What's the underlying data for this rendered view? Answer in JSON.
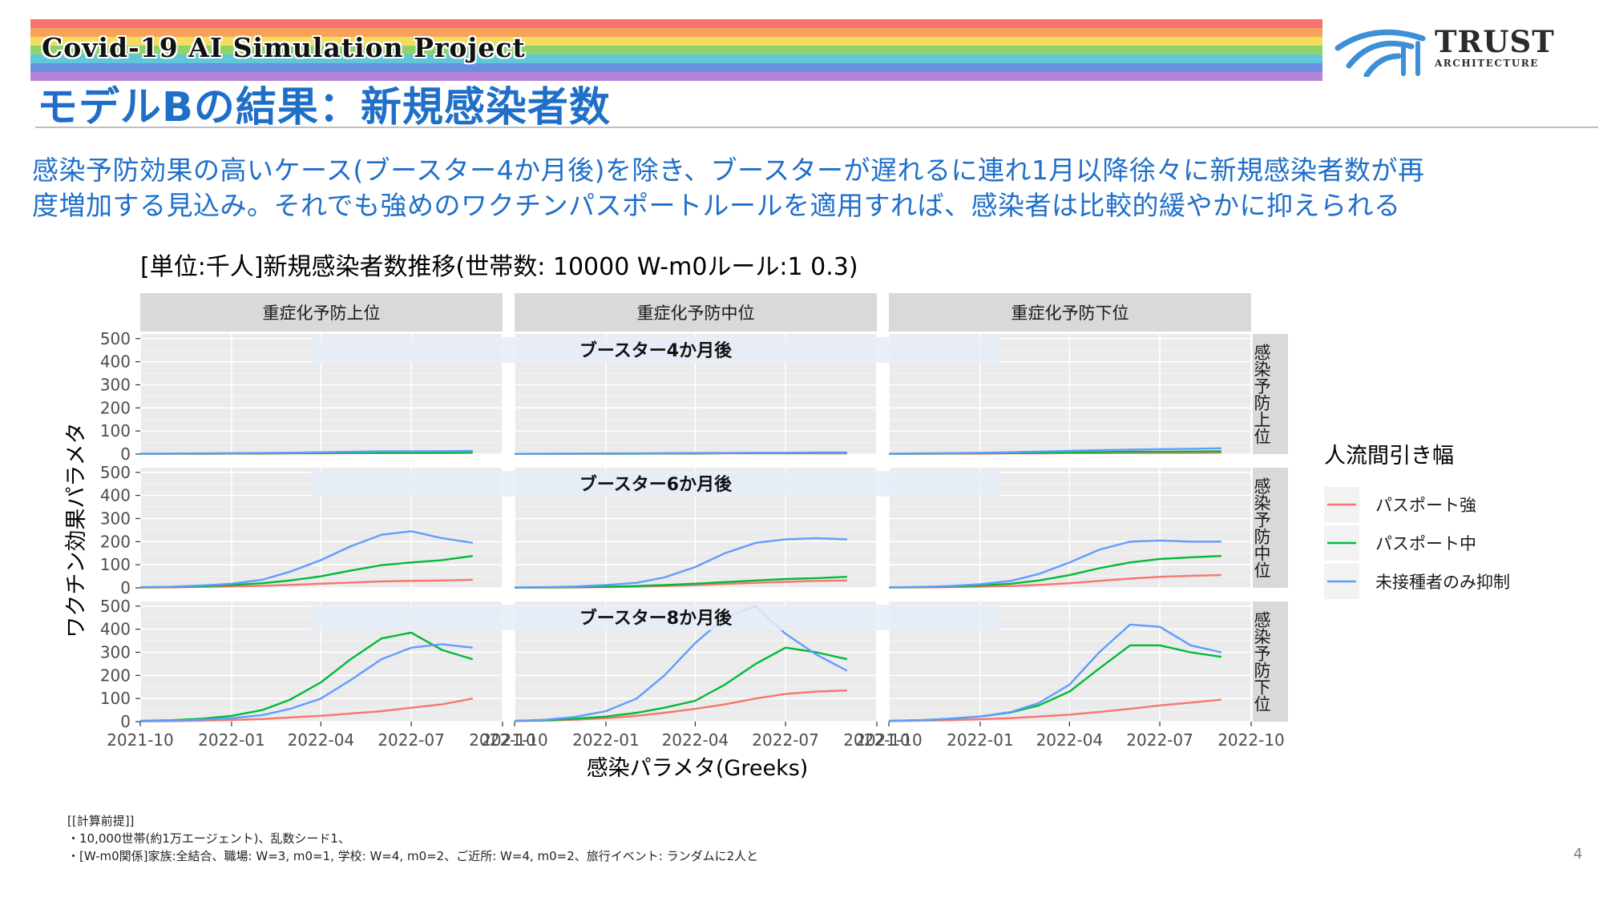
{
  "banner": {
    "title": "Covid-19 AI Simulation Project",
    "stripe_colors": [
      "#f57373",
      "#f8a15a",
      "#f3dc5e",
      "#8fd16a",
      "#5fc7d8",
      "#6b8fe0",
      "#b783d8"
    ]
  },
  "logo": {
    "main": "TRUST",
    "sub": "ARCHITECTURE",
    "icon": "arch-logo-icon",
    "color": "#3d8fd6"
  },
  "page": {
    "title": "モデルBの結果：新規感染者数",
    "subtitle_line1": "感染予防効果の高いケース(ブースター4か月後)を除き、ブースターが遅れるに連れ1月以降徐々に新規感染者数が再",
    "subtitle_line2": "度増加する見込み。それでも強めのワクチンパスポートルールを適用すれば、感染者は比較的緩やかに抑えられる",
    "page_number": "4",
    "accent_color": "#1f6fc8"
  },
  "notes": {
    "header": "[[計算前提]]",
    "line1": "・10,000世帯(約1万エージェント)、乱数シード1、",
    "line2": "・[W-m0関係]家族:全結合、職場: W=3, m0=1, 学校: W=4, m0=2、ご近所: W=4, m0=2、旅行イベント: ランダムに2人と"
  },
  "chart_data": {
    "type": "line",
    "title": "[単位:千人]新規感染者数推移(世帯数: 10000 W-m0ルール:1 0.3)",
    "xlabel": "感染パラメタ(Greeks)",
    "ylabel": "ワクチン効果パラメタ",
    "x_ticks": [
      "2021-10",
      "2022-01",
      "2022-04",
      "2022-07",
      "2022-10"
    ],
    "x_tick_dates": [
      "2021-10-01",
      "2022-01-01",
      "2022-04-01",
      "2022-07-01",
      "2022-10-01"
    ],
    "xlim": [
      "2021-10-01",
      "2022-10-01"
    ],
    "y_ticks": [
      0,
      100,
      200,
      300,
      400,
      500
    ],
    "ylim": [
      0,
      520
    ],
    "grid": true,
    "column_facets": [
      "重症化予防上位",
      "重症化予防中位",
      "重症化予防下位"
    ],
    "row_facets": [
      "感染予防上位",
      "感染予防中位",
      "感染予防下位"
    ],
    "row_annotations": [
      "ブースター4か月後",
      "ブースター6か月後",
      "ブースター8か月後"
    ],
    "legend": {
      "title": "人流間引き幅",
      "position": "right",
      "items": [
        {
          "name": "パスポート強",
          "color": "#f8766d"
        },
        {
          "name": "パスポート中",
          "color": "#00ba38"
        },
        {
          "name": "未接種者のみ抑制",
          "color": "#619cff"
        }
      ]
    },
    "series_dates": [
      "2021-10-01",
      "2021-11-01",
      "2021-12-01",
      "2022-01-01",
      "2022-02-01",
      "2022-03-01",
      "2022-04-01",
      "2022-05-01",
      "2022-06-01",
      "2022-07-01",
      "2022-08-01",
      "2022-09-01"
    ],
    "panels": [
      {
        "row": 0,
        "col": 0,
        "series": {
          "パスポート強": [
            1,
            1,
            1,
            2,
            2,
            3,
            3,
            4,
            4,
            4,
            4,
            5
          ],
          "パスポート中": [
            1,
            2,
            2,
            3,
            3,
            4,
            5,
            6,
            6,
            7,
            7,
            8
          ],
          "未接種者のみ抑制": [
            2,
            2,
            3,
            4,
            5,
            6,
            8,
            10,
            12,
            12,
            13,
            14
          ]
        }
      },
      {
        "row": 0,
        "col": 1,
        "series": {
          "パスポート強": [
            1,
            1,
            1,
            1,
            2,
            2,
            2,
            3,
            3,
            3,
            3,
            3
          ],
          "パスポート中": [
            1,
            1,
            2,
            2,
            2,
            3,
            3,
            4,
            4,
            4,
            5,
            5
          ],
          "未接種者のみ抑制": [
            1,
            2,
            2,
            3,
            3,
            4,
            5,
            5,
            6,
            6,
            7,
            7
          ]
        }
      },
      {
        "row": 0,
        "col": 2,
        "series": {
          "パスポート強": [
            1,
            1,
            2,
            2,
            3,
            3,
            4,
            4,
            5,
            5,
            5,
            6
          ],
          "パスポート中": [
            1,
            2,
            3,
            4,
            5,
            6,
            8,
            9,
            10,
            10,
            11,
            12
          ],
          "未接種者のみ抑制": [
            2,
            3,
            4,
            6,
            8,
            11,
            14,
            17,
            19,
            21,
            23,
            25
          ]
        }
      },
      {
        "row": 1,
        "col": 0,
        "series": {
          "パスポート強": [
            1,
            2,
            4,
            6,
            9,
            13,
            18,
            23,
            28,
            30,
            32,
            35
          ],
          "パスポート中": [
            2,
            4,
            7,
            12,
            20,
            32,
            50,
            75,
            98,
            110,
            120,
            138
          ],
          "未接種者のみ抑制": [
            3,
            5,
            10,
            18,
            35,
            70,
            120,
            180,
            230,
            245,
            215,
            195
          ]
        }
      },
      {
        "row": 1,
        "col": 1,
        "series": {
          "パスポート強": [
            1,
            1,
            2,
            3,
            5,
            8,
            12,
            17,
            22,
            26,
            30,
            32
          ],
          "パスポート中": [
            1,
            2,
            3,
            5,
            8,
            12,
            18,
            25,
            32,
            38,
            42,
            48
          ],
          "未接種者のみ抑制": [
            2,
            3,
            6,
            12,
            22,
            45,
            90,
            150,
            195,
            210,
            215,
            210
          ]
        }
      },
      {
        "row": 1,
        "col": 2,
        "series": {
          "パスポート強": [
            1,
            2,
            3,
            5,
            8,
            13,
            20,
            30,
            40,
            48,
            52,
            55
          ],
          "パスポート中": [
            2,
            3,
            6,
            10,
            18,
            32,
            55,
            85,
            110,
            125,
            132,
            138
          ],
          "未接種者のみ抑制": [
            2,
            4,
            8,
            16,
            30,
            60,
            110,
            165,
            200,
            205,
            200,
            200
          ]
        }
      },
      {
        "row": 2,
        "col": 0,
        "series": {
          "パスポート強": [
            1,
            2,
            4,
            7,
            11,
            18,
            25,
            35,
            45,
            60,
            75,
            100
          ],
          "パスポート中": [
            3,
            6,
            12,
            25,
            50,
            95,
            170,
            270,
            360,
            385,
            310,
            270
          ],
          "未接種者のみ抑制": [
            2,
            4,
            8,
            15,
            28,
            55,
            100,
            180,
            270,
            320,
            335,
            320
          ]
        }
      },
      {
        "row": 2,
        "col": 1,
        "series": {
          "パスポート強": [
            2,
            4,
            8,
            15,
            25,
            38,
            55,
            75,
            100,
            120,
            130,
            135
          ],
          "パスポート中": [
            3,
            6,
            12,
            22,
            38,
            60,
            90,
            160,
            250,
            320,
            300,
            270
          ],
          "未接種者のみ抑制": [
            3,
            8,
            20,
            45,
            100,
            200,
            340,
            450,
            500,
            380,
            290,
            220
          ]
        }
      },
      {
        "row": 2,
        "col": 2,
        "series": {
          "パスポート強": [
            2,
            4,
            6,
            10,
            15,
            22,
            30,
            42,
            55,
            70,
            82,
            95
          ],
          "パスポート中": [
            3,
            6,
            12,
            22,
            40,
            70,
            130,
            230,
            330,
            330,
            300,
            280
          ],
          "未接種者のみ抑制": [
            3,
            6,
            12,
            22,
            42,
            80,
            160,
            300,
            420,
            410,
            330,
            300
          ]
        }
      }
    ]
  }
}
